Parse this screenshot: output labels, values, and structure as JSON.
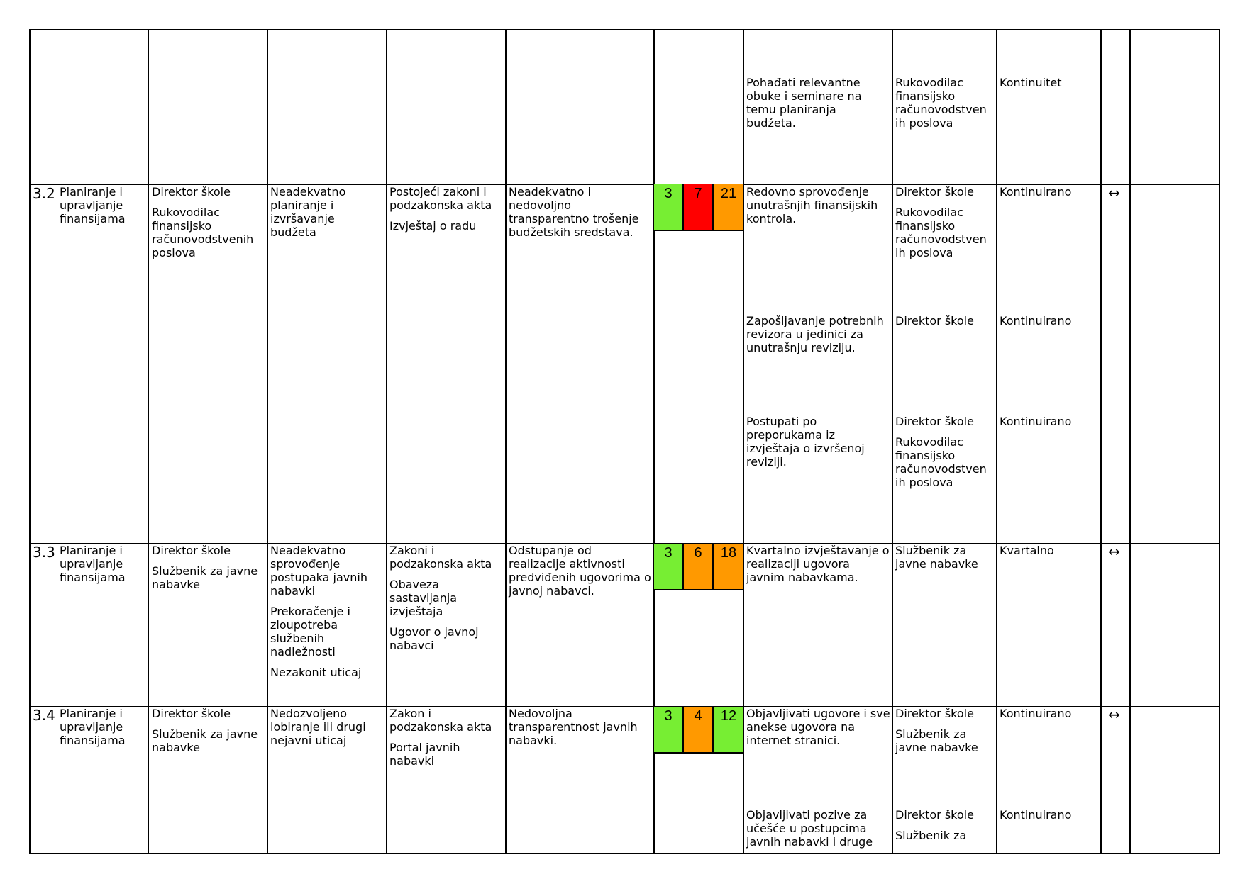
{
  "colors": {
    "green": "#77ee33",
    "orange": "#ff9900",
    "red": "#ff0000",
    "border": "#000000"
  },
  "top_row": {
    "measure": "Pohađati relevantne obuke i seminare na temu planiranja budžeta.",
    "responsible": [
      "Rukovodilac finansijsko računovodstven ih poslova"
    ],
    "deadline": "Kontinuitet"
  },
  "rows": [
    {
      "num": "3.2",
      "area": "Planiranje i upravljanje finansijama",
      "owners": [
        "Direktor škole",
        "Rukovodilac finansijsko računovodstvenih poslova"
      ],
      "risk": [
        "Neadekvatno planiranje i izvršavanje budžeta"
      ],
      "sources": [
        "Postojeći zakoni i podzakonska akta",
        "Izvještaj o radu"
      ],
      "consequence": "Neadekvatno i nedovoljno transparentno trošenje budžetskih sredstava.",
      "probability": "3",
      "impact": "7",
      "score": "21",
      "trend": "↔",
      "measures": [
        {
          "text": "Redovno sprovođenje unutrašnjih finansijskih kontrola.",
          "responsible": [
            "Direktor škole",
            "Rukovodilac finansijsko računovodstven ih poslova"
          ],
          "deadline": "Kontinuirano"
        },
        {
          "text": "Zapošljavanje potrebnih revizora u jedinici za unutrašnju reviziju.",
          "responsible": [
            "Direktor škole"
          ],
          "deadline": "Kontinuirano"
        },
        {
          "text": "Postupati po preporukama iz izvještaja o izvršenoj reviziji.",
          "responsible": [
            "Direktor škole",
            "Rukovodilac finansijsko računovodstven ih poslova"
          ],
          "deadline": "Kontinuirano"
        }
      ]
    },
    {
      "num": "3.3",
      "area": "Planiranje i upravljanje finansijama",
      "owners": [
        "Direktor škole",
        "Službenik za javne nabavke"
      ],
      "risk": [
        "Neadekvatno sprovođenje postupaka javnih nabavki",
        "Prekoračenje i zloupotreba službenih nadležnosti",
        "Nezakonit uticaj"
      ],
      "sources": [
        "Zakoni i podzakonska akta",
        "Obaveza sastavljanja izvještaja",
        "Ugovor o javnoj nabavci"
      ],
      "consequence": "Odstupanje od realizacije aktivnosti predviđenih ugovorima o javnoj nabavci.",
      "probability": "3",
      "impact": "6",
      "score": "18",
      "trend": "↔",
      "measures": [
        {
          "text": "Kvartalno izvještavanje o realizaciji ugovora javnim nabavkama.",
          "responsible": [
            "Službenik za javne nabavke"
          ],
          "deadline": "Kvartalno"
        }
      ]
    },
    {
      "num": "3.4",
      "area": "Planiranje i upravljanje finansijama",
      "owners": [
        "Direktor škole",
        "Službenik za javne nabavke"
      ],
      "risk": [
        "Nedozvoljeno lobiranje ili drugi nejavni uticaj"
      ],
      "sources": [
        "Zakon i podzakonska akta",
        "Portal javnih nabavki"
      ],
      "consequence": "Nedovoljna transparentnost javnih nabavki.",
      "probability": "3",
      "impact": "4",
      "score": "12",
      "trend": "↔",
      "measures": [
        {
          "text": "Objavljivati ugovore i sve anekse ugovora na internet stranici.",
          "responsible": [
            "Direktor škole",
            "Službenik za javne nabavke"
          ],
          "deadline": "Kontinuirano"
        },
        {
          "text": "Objavljivati pozive za učešće u postupcima javnih nabavki i druge",
          "responsible": [
            "Direktor škole",
            "Službenik za"
          ],
          "deadline": "Kontinuirano"
        }
      ]
    }
  ]
}
